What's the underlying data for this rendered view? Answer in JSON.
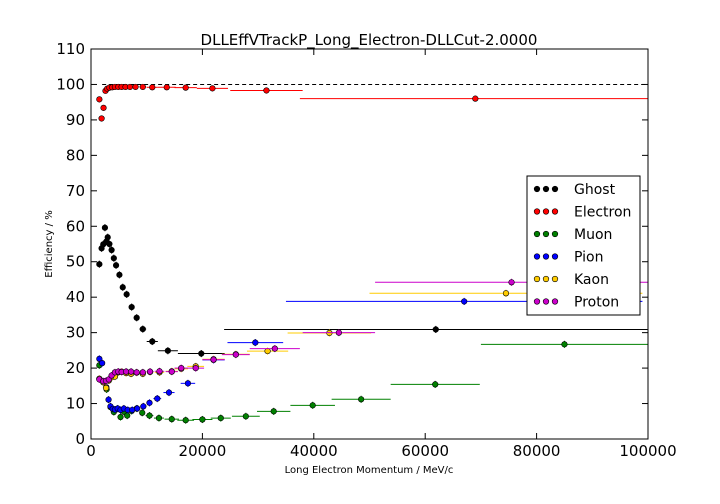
{
  "chart_data": {
    "type": "scatter",
    "title": "DLLEffVTrackP_Long_Electron-DLLCut-2.0000",
    "xlabel": "Long Electron Momentum / MeV/c",
    "ylabel": "Efficiency / %",
    "xlim": [
      0,
      100000
    ],
    "ylim": [
      0,
      110
    ],
    "xticks": [
      0,
      20000,
      40000,
      60000,
      80000,
      100000
    ],
    "yticks": [
      0,
      10,
      20,
      30,
      40,
      50,
      60,
      70,
      80,
      90,
      100,
      110
    ],
    "reference_line": 100,
    "grid": false,
    "legend_position": "right",
    "series": [
      {
        "name": "Ghost",
        "color": "#000000",
        "points": [
          [
            1500,
            49.3,
            300,
            1.0
          ],
          [
            1900,
            53.8,
            200,
            1.0
          ],
          [
            2200,
            54.9,
            200,
            1.0
          ],
          [
            2500,
            59.6,
            150,
            1.0
          ],
          [
            2750,
            55.7,
            150,
            1.0
          ],
          [
            3000,
            56.9,
            150,
            1.0
          ],
          [
            3300,
            55.0,
            200,
            1.0
          ],
          [
            3700,
            53.3,
            200,
            1.0
          ],
          [
            4100,
            51.0,
            250,
            1.0
          ],
          [
            4500,
            49.0,
            250,
            1.0
          ],
          [
            5100,
            46.3,
            350,
            1.0
          ],
          [
            5700,
            42.8,
            350,
            1.0
          ],
          [
            6400,
            40.8,
            400,
            1.0
          ],
          [
            7300,
            37.2,
            500,
            1.0
          ],
          [
            8200,
            34.2,
            500,
            1.0
          ],
          [
            9300,
            31.0,
            600,
            1.0
          ],
          [
            11000,
            27.5,
            1000,
            1.0
          ],
          [
            13800,
            24.9,
            1800,
            1.0
          ],
          [
            19800,
            24.1,
            4200,
            1.0
          ],
          [
            61900,
            30.9,
            38000,
            1.0
          ]
        ]
      },
      {
        "name": "Electron",
        "color": "#ff0000",
        "points": [
          [
            1500,
            95.8,
            300,
            0.8
          ],
          [
            1900,
            90.4,
            200,
            0.8
          ],
          [
            2250,
            93.4,
            200,
            0.8
          ],
          [
            2600,
            98.2,
            150,
            0.5
          ],
          [
            2900,
            98.8,
            150,
            0.4
          ],
          [
            3300,
            99.1,
            200,
            0.3
          ],
          [
            3800,
            99.2,
            250,
            0.3
          ],
          [
            4300,
            99.3,
            250,
            0.3
          ],
          [
            4900,
            99.3,
            300,
            0.3
          ],
          [
            5500,
            99.3,
            300,
            0.3
          ],
          [
            6200,
            99.3,
            350,
            0.3
          ],
          [
            7000,
            99.3,
            400,
            0.3
          ],
          [
            8000,
            99.3,
            500,
            0.3
          ],
          [
            9300,
            99.3,
            600,
            0.3
          ],
          [
            11000,
            99.2,
            1000,
            0.3
          ],
          [
            13600,
            99.2,
            1600,
            0.3
          ],
          [
            17000,
            99.1,
            2000,
            0.3
          ],
          [
            21800,
            98.9,
            2800,
            0.4
          ],
          [
            31500,
            98.3,
            6500,
            0.5
          ],
          [
            69000,
            96.0,
            31500,
            0.6
          ]
        ]
      },
      {
        "name": "Muon",
        "color": "#008000",
        "points": [
          [
            1500,
            20.8,
            300,
            1.0
          ],
          [
            2800,
            14.0,
            300,
            1.0
          ],
          [
            3500,
            9.0,
            300,
            1.0
          ],
          [
            4100,
            7.6,
            300,
            1.0
          ],
          [
            4700,
            8.5,
            300,
            1.0
          ],
          [
            5300,
            6.2,
            300,
            1.0
          ],
          [
            5900,
            7.7,
            300,
            1.0
          ],
          [
            6500,
            6.6,
            300,
            1.0
          ],
          [
            7300,
            7.9,
            400,
            1.0
          ],
          [
            8200,
            8.6,
            400,
            1.0
          ],
          [
            9200,
            7.4,
            500,
            1.0
          ],
          [
            10500,
            6.6,
            700,
            1.0
          ],
          [
            12200,
            5.9,
            900,
            1.0
          ],
          [
            14500,
            5.6,
            1300,
            1.0
          ],
          [
            17000,
            5.3,
            1500,
            1.0
          ],
          [
            20000,
            5.5,
            1800,
            1.0
          ],
          [
            23300,
            5.9,
            1800,
            1.0
          ],
          [
            27800,
            6.4,
            2500,
            1.0
          ],
          [
            32800,
            7.8,
            3000,
            1.0
          ],
          [
            39800,
            9.5,
            4000,
            1.0
          ],
          [
            48500,
            11.2,
            5300,
            1.0
          ],
          [
            61800,
            15.4,
            8000,
            1.0
          ],
          [
            85000,
            26.7,
            15000,
            1.0
          ]
        ]
      },
      {
        "name": "Pion",
        "color": "#0000ff",
        "points": [
          [
            1500,
            22.6,
            300,
            1.0
          ],
          [
            2000,
            21.4,
            250,
            1.0
          ],
          [
            2750,
            14.6,
            200,
            1.0
          ],
          [
            3150,
            11.1,
            200,
            1.0
          ],
          [
            3500,
            9.2,
            200,
            1.0
          ],
          [
            3900,
            8.5,
            200,
            1.0
          ],
          [
            4300,
            8.3,
            200,
            1.0
          ],
          [
            4800,
            8.6,
            250,
            1.0
          ],
          [
            5300,
            8.2,
            250,
            1.0
          ],
          [
            5900,
            8.6,
            300,
            1.0
          ],
          [
            6600,
            8.2,
            350,
            1.0
          ],
          [
            7400,
            8.2,
            400,
            1.0
          ],
          [
            8300,
            8.6,
            450,
            1.0
          ],
          [
            9400,
            9.2,
            550,
            1.0
          ],
          [
            10500,
            10.2,
            550,
            1.0
          ],
          [
            11900,
            11.4,
            700,
            1.0
          ],
          [
            14000,
            13.1,
            1000,
            1.0
          ],
          [
            17400,
            15.7,
            1300,
            1.0
          ],
          [
            22000,
            22.3,
            2000,
            1.0
          ],
          [
            29500,
            27.2,
            5000,
            1.0
          ],
          [
            67000,
            38.8,
            32000,
            1.0
          ]
        ]
      },
      {
        "name": "Kaon",
        "color": "#ffcc00",
        "points": [
          [
            1500,
            17.0,
            300,
            1.0
          ],
          [
            2200,
            16.0,
            300,
            1.0
          ],
          [
            2700,
            14.4,
            200,
            1.0
          ],
          [
            3200,
            16.5,
            200,
            1.0
          ],
          [
            3700,
            17.4,
            250,
            1.0
          ],
          [
            4300,
            17.6,
            300,
            1.0
          ],
          [
            4900,
            18.8,
            300,
            1.0
          ],
          [
            5500,
            19.0,
            300,
            1.0
          ],
          [
            6300,
            18.6,
            400,
            1.0
          ],
          [
            7200,
            18.4,
            450,
            1.0
          ],
          [
            8200,
            18.7,
            500,
            1.0
          ],
          [
            9300,
            18.4,
            550,
            1.0
          ],
          [
            10600,
            18.9,
            650,
            1.0
          ],
          [
            12300,
            18.8,
            850,
            1.0
          ],
          [
            14500,
            19.1,
            1100,
            1.0
          ],
          [
            16200,
            19.8,
            1200,
            1.0
          ],
          [
            18800,
            20.5,
            1500,
            1.0
          ],
          [
            22000,
            22.5,
            2000,
            1.0
          ],
          [
            26000,
            23.9,
            2500,
            1.0
          ],
          [
            31700,
            24.8,
            3700,
            1.0
          ],
          [
            42800,
            29.9,
            7500,
            1.0
          ],
          [
            74500,
            41.1,
            24500,
            1.0
          ]
        ]
      },
      {
        "name": "Proton",
        "color": "#cc00cc",
        "points": [
          [
            1500,
            16.8,
            300,
            1.0
          ],
          [
            2200,
            16.3,
            300,
            1.0
          ],
          [
            2700,
            16.4,
            200,
            1.0
          ],
          [
            3200,
            16.8,
            200,
            1.0
          ],
          [
            3700,
            17.9,
            250,
            1.0
          ],
          [
            4300,
            18.8,
            300,
            1.0
          ],
          [
            4900,
            19.0,
            300,
            1.0
          ],
          [
            5500,
            18.9,
            300,
            1.0
          ],
          [
            6300,
            19.0,
            400,
            1.0
          ],
          [
            7200,
            19.0,
            450,
            1.0
          ],
          [
            8200,
            18.8,
            500,
            1.0
          ],
          [
            9300,
            18.8,
            550,
            1.0
          ],
          [
            10600,
            19.0,
            650,
            1.0
          ],
          [
            12300,
            19.1,
            850,
            1.0
          ],
          [
            14500,
            19.0,
            1100,
            1.0
          ],
          [
            16200,
            20.0,
            1200,
            1.0
          ],
          [
            18800,
            20.0,
            1500,
            1.0
          ],
          [
            22000,
            22.4,
            2000,
            1.0
          ],
          [
            26000,
            23.8,
            2500,
            1.0
          ],
          [
            33000,
            25.5,
            4500,
            1.0
          ],
          [
            44500,
            30.0,
            6500,
            1.0
          ],
          [
            75500,
            44.2,
            24500,
            1.0
          ]
        ]
      }
    ]
  }
}
